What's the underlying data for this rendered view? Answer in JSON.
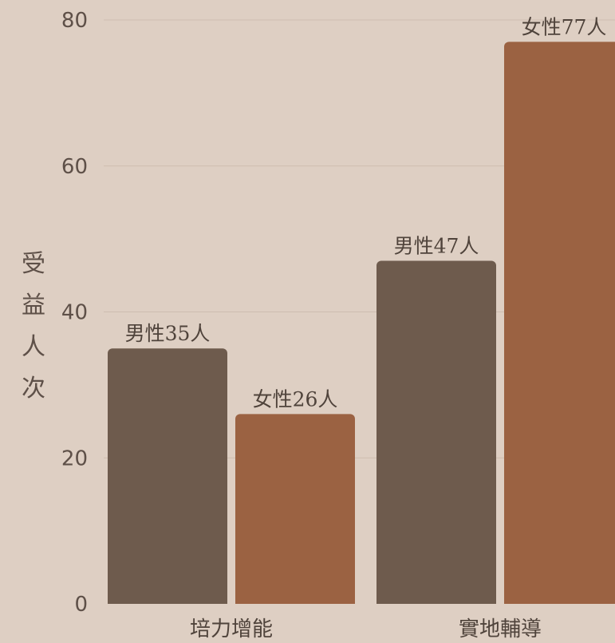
{
  "chart_data": {
    "type": "bar",
    "categories": [
      "培力增能",
      "實地輔導"
    ],
    "series": [
      {
        "key": "male",
        "values": [
          35,
          47
        ],
        "labels": [
          "男性35人",
          "男性47人"
        ],
        "color": "#6e5b4d"
      },
      {
        "key": "female",
        "values": [
          26,
          77
        ],
        "labels": [
          "女性26人",
          "女性77人"
        ],
        "color": "#9b6242"
      }
    ],
    "title": "",
    "xlabel": "",
    "ylabel": "受益人次",
    "ylim": [
      0,
      80
    ],
    "yticks": [
      0,
      20,
      40,
      60,
      80
    ],
    "grid": true,
    "legend": "none"
  }
}
